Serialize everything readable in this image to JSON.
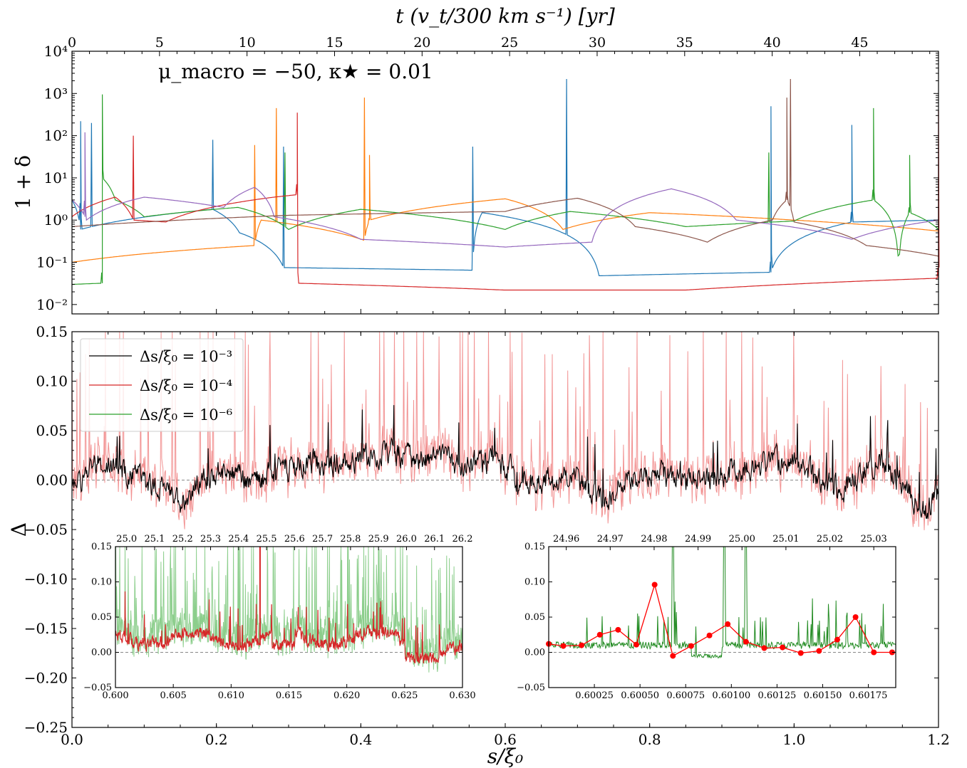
{
  "chart_data": [
    {
      "panel": "top",
      "type": "line",
      "annotation": "μ_macro = −50, κ★ = 0.01",
      "xlabel_top": "t (v_t/300 km s⁻¹) [yr]",
      "ylabel": "1 + δ",
      "ylog": true,
      "ylim": [
        0.006,
        10000
      ],
      "xlim": [
        0,
        1.2
      ],
      "xlim_top": [
        0,
        49.5
      ],
      "top_ticks": [
        "0",
        "5",
        "10",
        "15",
        "20",
        "25",
        "30",
        "35",
        "40",
        "45"
      ],
      "top_tick_values": [
        0,
        5,
        10,
        15,
        20,
        25,
        30,
        35,
        40,
        45
      ],
      "yticks": [
        "10⁻²",
        "10⁻¹",
        "10⁰",
        "10¹",
        "10²",
        "10³",
        "10⁴"
      ],
      "ytick_values": [
        0.01,
        0.1,
        1,
        10,
        100,
        1000,
        10000
      ],
      "series": [
        {
          "color": "#1f77b4",
          "levels": [
            [
              0,
              3
            ],
            [
              0.012,
              0.6
            ],
            [
              0.195,
              1.8
            ],
            [
              0.232,
              0.5
            ],
            [
              0.293,
              0.075
            ],
            [
              0.555,
              0.065
            ],
            [
              0.568,
              1.5
            ],
            [
              0.73,
              0.048
            ],
            [
              0.968,
              0.058
            ],
            [
              1.08,
              0.9
            ],
            [
              1.2,
              1.0
            ]
          ],
          "spikes": [
            [
              0.012,
              220
            ],
            [
              0.027,
              200
            ],
            [
              0.195,
              80
            ],
            [
              0.293,
              55
            ],
            [
              0.555,
              55
            ],
            [
              0.685,
              2200
            ],
            [
              0.968,
              500
            ],
            [
              1.08,
              180
            ]
          ]
        },
        {
          "color": "#ff7f0e",
          "levels": [
            [
              0,
              0.1
            ],
            [
              0.253,
              0.25
            ],
            [
              0.262,
              1.0
            ],
            [
              0.405,
              0.33
            ],
            [
              0.412,
              1.0
            ],
            [
              0.6,
              3.2
            ],
            [
              0.68,
              0.6
            ],
            [
              0.8,
              1.5
            ],
            [
              1.0,
              1.0
            ],
            [
              1.2,
              0.55
            ]
          ],
          "spikes": [
            [
              0.253,
              60
            ],
            [
              0.283,
              450
            ],
            [
              0.405,
              800
            ],
            [
              0.412,
              35
            ]
          ]
        },
        {
          "color": "#2ca02c",
          "levels": [
            [
              0,
              0.03
            ],
            [
              0.042,
              0.032
            ],
            [
              0.042,
              10
            ],
            [
              0.06,
              3
            ],
            [
              0.1,
              1.2
            ],
            [
              0.23,
              2.0
            ],
            [
              0.3,
              0.6
            ],
            [
              0.4,
              1.8
            ],
            [
              0.6,
              0.6
            ],
            [
              0.69,
              1.6
            ],
            [
              0.85,
              0.7
            ],
            [
              1.0,
              0.95
            ],
            [
              1.11,
              3.0
            ],
            [
              1.145,
              0.058
            ],
            [
              1.16,
              1.5
            ],
            [
              1.2,
              0.6
            ]
          ],
          "spikes": [
            [
              0.042,
              950
            ],
            [
              0.295,
              40
            ],
            [
              0.965,
              40
            ],
            [
              1.11,
              450
            ],
            [
              1.16,
              35
            ]
          ]
        },
        {
          "color": "#d62728",
          "levels": [
            [
              0,
              1.2
            ],
            [
              0.06,
              3.5
            ],
            [
              0.085,
              1.0
            ],
            [
              0.13,
              0.9
            ],
            [
              0.28,
              3.5
            ],
            [
              0.312,
              4.0
            ],
            [
              0.312,
              0.032
            ],
            [
              0.6,
              0.022
            ],
            [
              0.85,
              0.022
            ],
            [
              1.2,
              0.042
            ]
          ],
          "spikes": [
            [
              0.085,
              100
            ],
            [
              0.312,
              350
            ],
            [
              1.2,
              400
            ]
          ]
        },
        {
          "color": "#9467bd",
          "levels": [
            [
              0,
              3
            ],
            [
              0.02,
              1.0
            ],
            [
              0.1,
              3.5
            ],
            [
              0.21,
              2.0
            ],
            [
              0.253,
              6.0
            ],
            [
              0.28,
              1.2
            ],
            [
              0.4,
              0.35
            ],
            [
              0.6,
              0.23
            ],
            [
              0.72,
              0.3
            ],
            [
              0.83,
              5.5
            ],
            [
              0.92,
              1.0
            ],
            [
              1.08,
              0.35
            ],
            [
              1.2,
              1.0
            ]
          ],
          "spikes": [
            [
              0.018,
              120
            ]
          ]
        },
        {
          "color": "#8c564b",
          "levels": [
            [
              0,
              0.7
            ],
            [
              0.3,
              1.3
            ],
            [
              0.6,
              1.6
            ],
            [
              0.7,
              3.3
            ],
            [
              0.78,
              0.7
            ],
            [
              0.88,
              0.3
            ],
            [
              0.97,
              1.0
            ],
            [
              0.99,
              3.0
            ],
            [
              1.0,
              0.9
            ],
            [
              1.1,
              0.25
            ],
            [
              1.2,
              0.14
            ]
          ],
          "spikes": [
            [
              0.99,
              800
            ],
            [
              0.995,
              2200
            ]
          ]
        }
      ]
    },
    {
      "panel": "bottom",
      "type": "line",
      "xlabel": "s/ξ₀",
      "ylabel": "Δ",
      "xlim": [
        0,
        1.2
      ],
      "ylim": [
        -0.25,
        0.15
      ],
      "xticks": [
        "0.0",
        "0.2",
        "0.4",
        "0.6",
        "0.8",
        "1.0",
        "1.2"
      ],
      "xtick_values": [
        0,
        0.2,
        0.4,
        0.6,
        0.8,
        1.0,
        1.2
      ],
      "yticks": [
        "−0.25",
        "−0.20",
        "−0.15",
        "−0.10",
        "−0.05",
        "0.00",
        "0.05",
        "0.10",
        "0.15"
      ],
      "ytick_values": [
        -0.25,
        -0.2,
        -0.15,
        -0.1,
        -0.05,
        0,
        0.05,
        0.1,
        0.15
      ],
      "legend_position": "upper-left",
      "series": [
        {
          "name": "Δs/ξ₀ = 10⁻³",
          "color": "#000000"
        },
        {
          "name": "Δs/ξ₀ = 10⁻⁴",
          "color": "#d62728"
        },
        {
          "name": "Δs/ξ₀ = 10⁻⁶",
          "color": "#2ca02c"
        }
      ],
      "baseline_profile": [
        [
          0,
          -0.01
        ],
        [
          0.03,
          0.02
        ],
        [
          0.1,
          0.0
        ],
        [
          0.15,
          -0.02
        ],
        [
          0.2,
          0.01
        ],
        [
          0.25,
          0.0
        ],
        [
          0.32,
          0.015
        ],
        [
          0.38,
          0.02
        ],
        [
          0.43,
          0.03
        ],
        [
          0.47,
          0.02
        ],
        [
          0.55,
          0.015
        ],
        [
          0.6,
          0.015
        ],
        [
          0.62,
          0.0
        ],
        [
          0.7,
          0.0
        ],
        [
          0.73,
          -0.02
        ],
        [
          0.8,
          0.01
        ],
        [
          0.86,
          0.0
        ],
        [
          0.93,
          0.015
        ],
        [
          1.0,
          0.02
        ],
        [
          1.06,
          -0.01
        ],
        [
          1.12,
          0.02
        ],
        [
          1.18,
          -0.03
        ],
        [
          1.2,
          -0.01
        ]
      ]
    },
    {
      "panel": "inset-left",
      "type": "line",
      "xlim": [
        0.6,
        0.63
      ],
      "ylim": [
        -0.05,
        0.15
      ],
      "xticks": [
        "0.600",
        "0.605",
        "0.610",
        "0.615",
        "0.620",
        "0.625",
        "0.630"
      ],
      "xtick_values": [
        0.6,
        0.605,
        0.61,
        0.615,
        0.62,
        0.625,
        0.63
      ],
      "yticks": [
        "−0.05",
        "0.00",
        "0.05",
        "0.10",
        "0.15"
      ],
      "ytick_values": [
        -0.05,
        0,
        0.05,
        0.1,
        0.15
      ],
      "top_ticks": [
        "25.0",
        "25.1",
        "25.2",
        "25.3",
        "25.4",
        "25.5",
        "25.6",
        "25.7",
        "25.8",
        "25.9",
        "26.0",
        "26.1",
        "26.2"
      ],
      "top_tick_values": [
        25.0,
        25.1,
        25.2,
        25.3,
        25.4,
        25.5,
        25.6,
        25.7,
        25.8,
        25.9,
        26.0,
        26.1,
        26.2
      ],
      "xlim_top": [
        24.96,
        26.2
      ]
    },
    {
      "panel": "inset-right",
      "type": "line",
      "xlim": [
        0.6,
        0.6019
      ],
      "ylim": [
        -0.05,
        0.15
      ],
      "xticks": [
        "0.60025",
        "0.60050",
        "0.60075",
        "0.60100",
        "0.60125",
        "0.60150",
        "0.60175"
      ],
      "xtick_values": [
        0.60025,
        0.6005,
        0.60075,
        0.601,
        0.60125,
        0.6015,
        0.60175
      ],
      "yticks": [
        "−0.05",
        "0.00",
        "0.05",
        "0.10",
        "0.15"
      ],
      "ytick_values": [
        -0.05,
        0,
        0.05,
        0.1,
        0.15
      ],
      "top_ticks": [
        "24.96",
        "24.97",
        "24.98",
        "24.99",
        "25.00",
        "25.01",
        "25.02",
        "25.03"
      ],
      "top_tick_values": [
        24.96,
        24.97,
        24.98,
        24.99,
        25.0,
        25.01,
        25.02,
        25.03
      ],
      "xlim_top": [
        24.956,
        25.035
      ],
      "red_points_x": [
        0.6,
        0.60008,
        0.60018,
        0.60028,
        0.60038,
        0.60048,
        0.60058,
        0.60068,
        0.60078,
        0.60088,
        0.60098,
        0.60108,
        0.60118,
        0.60128,
        0.60138,
        0.60148,
        0.60158,
        0.60168,
        0.60178,
        0.60188
      ],
      "red_points_y": [
        0.012,
        0.009,
        0.01,
        0.025,
        0.032,
        0.011,
        0.096,
        -0.005,
        0.009,
        0.024,
        0.04,
        0.015,
        0.006,
        0.007,
        -0.001,
        0.002,
        0.018,
        0.05,
        0.0,
        0.0
      ]
    }
  ]
}
